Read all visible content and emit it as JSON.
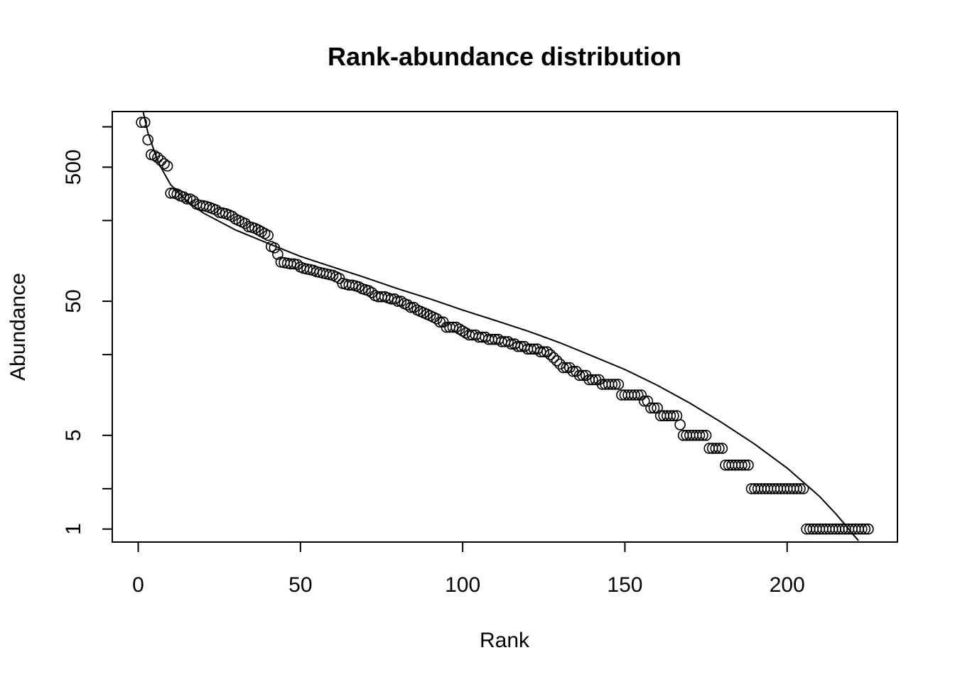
{
  "chart_data": {
    "type": "scatter",
    "title": "Rank-abundance distribution",
    "xlabel": "Rank",
    "ylabel": "Abundance",
    "xlim": [
      -8,
      234
    ],
    "ylim": [
      0.8,
      1300
    ],
    "ylog": true,
    "grid": false,
    "legend": "none",
    "x_ticks": [
      0,
      50,
      100,
      150,
      200
    ],
    "y_ticks": [
      1,
      2,
      5,
      20,
      50,
      200,
      500,
      1000
    ],
    "y_tick_labels": [
      "1",
      "",
      "5",
      "",
      "50",
      "",
      "500",
      ""
    ],
    "series": [
      {
        "type": "points",
        "x_start": 1,
        "values": [
          1080,
          1080,
          800,
          620,
          610,
          590,
          560,
          530,
          510,
          320,
          320,
          315,
          305,
          300,
          290,
          290,
          280,
          265,
          260,
          258,
          255,
          250,
          245,
          240,
          230,
          228,
          225,
          220,
          215,
          205,
          200,
          195,
          190,
          180,
          178,
          175,
          170,
          165,
          160,
          155,
          128,
          125,
          112,
          98,
          97,
          96,
          95,
          95,
          94,
          90,
          88,
          87,
          86,
          85,
          83,
          82,
          81,
          80,
          79,
          78,
          76,
          74,
          68,
          67,
          66,
          66,
          65,
          64,
          62,
          61,
          60,
          58,
          55,
          54,
          54,
          54,
          53,
          52,
          52,
          50,
          50,
          48,
          47,
          45,
          45,
          43,
          42,
          41,
          40,
          39,
          38,
          37,
          35,
          35,
          32,
          32,
          32,
          32,
          31,
          30,
          29,
          28,
          28,
          28,
          27,
          27,
          27,
          26,
          26,
          26,
          26,
          25,
          25,
          25,
          24,
          24,
          23,
          23,
          23,
          22,
          22,
          22,
          22,
          21,
          21,
          21,
          20,
          19,
          18,
          17,
          16,
          16,
          16,
          15,
          15,
          14,
          14,
          14,
          13,
          13,
          13,
          13,
          12,
          12,
          12,
          12,
          12,
          12,
          10,
          10,
          10,
          10,
          10,
          10,
          10,
          9,
          9,
          8,
          8,
          8,
          7,
          7,
          7,
          7,
          7,
          7,
          6,
          5,
          5,
          5,
          5,
          5,
          5,
          5,
          5,
          4,
          4,
          4,
          4,
          4,
          3,
          3,
          3,
          3,
          3,
          3,
          3,
          3,
          2,
          2,
          2,
          2,
          2,
          2,
          2,
          2,
          2,
          2,
          2,
          2,
          2,
          2,
          2,
          2,
          2,
          1,
          1,
          1,
          1,
          1,
          1,
          1,
          1,
          1,
          1,
          1,
          1,
          1,
          1,
          1,
          1,
          1,
          1,
          1,
          1
        ]
      },
      {
        "type": "fitted-line",
        "points": [
          [
            1.5,
            1300
          ],
          [
            2,
            1150
          ],
          [
            3,
            900
          ],
          [
            4,
            770
          ],
          [
            5,
            650
          ],
          [
            6,
            560
          ],
          [
            7,
            500
          ],
          [
            8,
            450
          ],
          [
            10,
            370
          ],
          [
            15,
            280
          ],
          [
            20,
            228
          ],
          [
            30,
            170
          ],
          [
            40,
            135
          ],
          [
            50,
            108
          ],
          [
            60,
            90
          ],
          [
            70,
            75
          ],
          [
            80,
            62
          ],
          [
            90,
            52
          ],
          [
            100,
            43
          ],
          [
            110,
            36
          ],
          [
            120,
            30
          ],
          [
            130,
            24.5
          ],
          [
            140,
            19.5
          ],
          [
            150,
            15.5
          ],
          [
            160,
            11.8
          ],
          [
            170,
            8.7
          ],
          [
            180,
            6.2
          ],
          [
            190,
            4.3
          ],
          [
            200,
            2.85
          ],
          [
            210,
            1.75
          ],
          [
            215,
            1.3
          ],
          [
            218,
            1.07
          ],
          [
            220,
            0.93
          ],
          [
            222,
            0.82
          ]
        ]
      }
    ]
  }
}
